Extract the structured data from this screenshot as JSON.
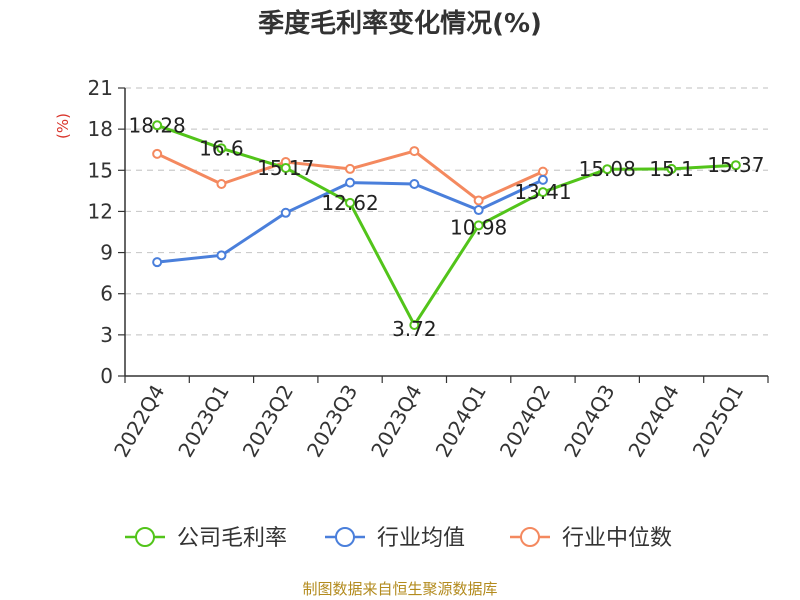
{
  "chart_data": {
    "type": "line",
    "title": "季度毛利率变化情况(%)",
    "ylabel": "(%)",
    "xlabel": "",
    "categories": [
      "2022Q4",
      "2023Q1",
      "2023Q2",
      "2023Q3",
      "2023Q4",
      "2024Q1",
      "2024Q2",
      "2024Q3",
      "2024Q4",
      "2025Q1"
    ],
    "ylim": [
      0,
      21
    ],
    "yticks": [
      0,
      3,
      6,
      9,
      12,
      15,
      18,
      21
    ],
    "grid": true,
    "legend_position": "bottom",
    "series": [
      {
        "name": "公司毛利率",
        "color": "#52c41a",
        "values": [
          18.28,
          16.6,
          15.17,
          12.62,
          3.72,
          10.98,
          13.41,
          15.08,
          15.1,
          15.37
        ],
        "labels": [
          "18.28",
          "16.6",
          "15.17",
          "12.62",
          "3.72",
          "10.98",
          "13.41",
          "15.08",
          "15.1",
          "15.37"
        ]
      },
      {
        "name": "行业均值",
        "color": "#4a7fdb",
        "values": [
          8.3,
          8.8,
          11.9,
          14.1,
          14.0,
          12.1,
          14.3,
          null,
          null,
          null
        ]
      },
      {
        "name": "行业中位数",
        "color": "#f4895f",
        "values": [
          16.2,
          14.0,
          15.6,
          15.1,
          16.4,
          12.8,
          14.9,
          null,
          null,
          null
        ]
      }
    ]
  },
  "footer": "制图数据来自恒生聚源数据库"
}
